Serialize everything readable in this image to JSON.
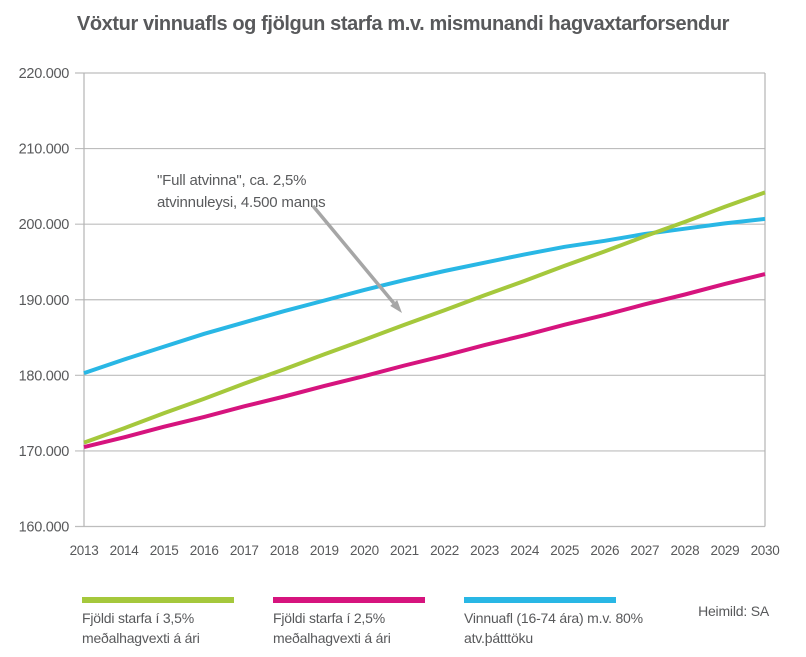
{
  "title": "Vöxtur vinnuafls og fjölgun starfa m.v. mismunandi hagvaxtarforsendur",
  "source": "Heimild: SA",
  "annotation": {
    "line1": "\"Full atvinna\", ca. 2,5%",
    "line2": "atvinnuleysi, 4.500 manns"
  },
  "colors": {
    "jobs_high_growth": "#a5c83c",
    "jobs_low_growth": "#d6147e",
    "labor_force": "#29b7e5",
    "grid": "#bdbdbd",
    "axis": "#b3b3b3",
    "text": "#58595b",
    "arrow": "#a6a6a6"
  },
  "legend": {
    "items": [
      {
        "line1": "Fjöldi starfa í 3,5%",
        "line2": "meðalhagvexti á ári"
      },
      {
        "line1": "Fjöldi starfa í 2,5%",
        "line2": "meðalhagvexti á ári"
      },
      {
        "line1": "Vinnuafl (16-74 ára) m.v. 80%",
        "line2": "atv.þátttöku"
      }
    ]
  },
  "chart_data": {
    "type": "line",
    "title": "Vöxtur vinnuafls og fjölgun starfa m.v. mismunandi hagvaxtarforsendur",
    "xlabel": "",
    "ylabel": "",
    "grid": "horizontal",
    "legend_position": "bottom",
    "ylim": [
      160000,
      220000
    ],
    "y_ticks": [
      {
        "value": 160000,
        "label": "160.000"
      },
      {
        "value": 170000,
        "label": "170.000"
      },
      {
        "value": 180000,
        "label": "180.000"
      },
      {
        "value": 190000,
        "label": "190.000"
      },
      {
        "value": 200000,
        "label": "200.000"
      },
      {
        "value": 210000,
        "label": "210.000"
      },
      {
        "value": 220000,
        "label": "220.000"
      }
    ],
    "x": [
      2013,
      2014,
      2015,
      2016,
      2017,
      2018,
      2019,
      2020,
      2021,
      2022,
      2023,
      2024,
      2025,
      2026,
      2027,
      2028,
      2029,
      2030
    ],
    "series": [
      {
        "name": "Fjöldi starfa í 3,5% meðalhagvexti á ári",
        "color": "#a5c83c",
        "values": [
          171100,
          173000,
          175000,
          176900,
          178900,
          180800,
          182800,
          184700,
          186700,
          188600,
          190600,
          192500,
          194500,
          196400,
          198400,
          200300,
          202300,
          204200
        ]
      },
      {
        "name": "Fjöldi starfa í 2,5% meðalhagvexti á ári",
        "color": "#d6147e",
        "values": [
          170500,
          171800,
          173200,
          174500,
          175900,
          177200,
          178600,
          179900,
          181300,
          182600,
          184000,
          185300,
          186700,
          188000,
          189400,
          190700,
          192100,
          193400
        ]
      },
      {
        "name": "Vinnuafl (16-74 ára) m.v. 80% atv.þátttöku",
        "color": "#29b7e5",
        "values": [
          180300,
          182100,
          183800,
          185500,
          187000,
          188500,
          189900,
          191300,
          192600,
          193800,
          194900,
          196000,
          197000,
          197800,
          198700,
          199400,
          200100,
          200700
        ]
      }
    ],
    "annotation": {
      "text": "\"Full atvinna\", ca. 2,5% atvinnuleysi, 4.500 manns",
      "arrow_points_to": {
        "x": 2021,
        "y": 187500
      }
    }
  }
}
